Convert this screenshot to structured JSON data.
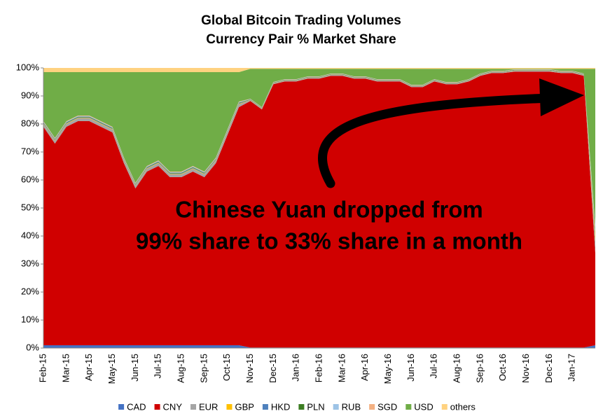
{
  "chart_data": {
    "type": "stacked_area",
    "title": "Global Bitcoin Trading Volumes",
    "subtitle": "Currency Pair % Market Share",
    "categories": [
      "Feb-15",
      null,
      "Mar-15",
      null,
      "Apr-15",
      null,
      "May-15",
      null,
      "Jun-15",
      null,
      "Jul-15",
      null,
      "Aug-15",
      null,
      "Sep-15",
      null,
      "Oct-15",
      null,
      "Nov-15",
      null,
      "Dec-15",
      null,
      "Jan-16",
      null,
      "Feb-16",
      null,
      "Mar-16",
      null,
      "Apr-16",
      null,
      "May-16",
      null,
      "Jun-16",
      null,
      "Jul-16",
      null,
      "Aug-16",
      null,
      "Sep-16",
      null,
      "Oct-16",
      null,
      "Nov-16",
      null,
      "Dec-16",
      null,
      "Jan-17",
      null,
      null
    ],
    "series": [
      {
        "name": "CAD",
        "color": "#4472c4",
        "values": [
          1,
          1,
          1,
          1,
          1,
          1,
          1,
          1,
          1,
          1,
          1,
          1,
          1,
          1,
          1,
          1,
          1,
          1,
          0.2,
          0.2,
          0.2,
          0.2,
          0.2,
          0.2,
          0.2,
          0.2,
          0.2,
          0.2,
          0.2,
          0.2,
          0.2,
          0.2,
          0.2,
          0.2,
          0.2,
          0.2,
          0.2,
          0.2,
          0.2,
          0.2,
          0.2,
          0.2,
          0.2,
          0.2,
          0.2,
          0.2,
          0.2,
          0.2,
          1
        ]
      },
      {
        "name": "CNY",
        "color": "#d00000",
        "values": [
          78,
          72,
          78,
          80,
          80,
          78,
          76,
          65,
          56,
          62,
          64,
          60,
          60,
          62,
          60,
          65,
          75,
          85,
          88,
          85,
          94,
          95,
          95,
          96,
          96,
          97,
          97,
          96,
          96,
          95,
          95,
          95,
          93,
          93,
          95,
          94,
          94,
          95,
          97,
          98,
          98,
          98.5,
          98.5,
          98.5,
          98.5,
          98,
          98,
          97,
          33
        ]
      },
      {
        "name": "EUR",
        "color": "#a5a5a5",
        "values": [
          1,
          1,
          1,
          1,
          1,
          1,
          1,
          1,
          1,
          1,
          1,
          1,
          1,
          1,
          1,
          1,
          1,
          1,
          0.3,
          0.3,
          0.3,
          0.3,
          0.3,
          0.3,
          0.3,
          0.3,
          0.3,
          0.3,
          0.3,
          0.3,
          0.3,
          0.3,
          0.3,
          0.3,
          0.3,
          0.3,
          0.3,
          0.3,
          0.3,
          0.3,
          0.3,
          0.3,
          0.3,
          0.3,
          0.3,
          0.3,
          0.3,
          0.3,
          4
        ]
      },
      {
        "name": "GBP",
        "color": "#ffc000",
        "values": [
          0.2,
          0.2,
          0.2,
          0.2,
          0.2,
          0.2,
          0.2,
          0.2,
          0.2,
          0.2,
          0.2,
          0.2,
          0.2,
          0.2,
          0.2,
          0.2,
          0.2,
          0.2,
          0.1,
          0.1,
          0.1,
          0.1,
          0.1,
          0.1,
          0.1,
          0.1,
          0.1,
          0.1,
          0.1,
          0.1,
          0.1,
          0.1,
          0.1,
          0.1,
          0.1,
          0.1,
          0.1,
          0.1,
          0.1,
          0.1,
          0.1,
          0.1,
          0.1,
          0.1,
          0.1,
          0.1,
          0.1,
          0.1,
          2
        ]
      },
      {
        "name": "HKD",
        "color": "#4f81bd",
        "values": [
          0.2,
          0.2,
          0.2,
          0.2,
          0.2,
          0.2,
          0.2,
          0.2,
          0.2,
          0.2,
          0.2,
          0.2,
          0.2,
          0.2,
          0.2,
          0.2,
          0.2,
          0.2,
          0.1,
          0.1,
          0.1,
          0.1,
          0.1,
          0.1,
          0.1,
          0.1,
          0.1,
          0.1,
          0.1,
          0.1,
          0.1,
          0.1,
          0.1,
          0.1,
          0.1,
          0.1,
          0.1,
          0.1,
          0.1,
          0.1,
          0.1,
          0.1,
          0.1,
          0.1,
          0.1,
          0.1,
          0.1,
          0.1,
          0.2
        ]
      },
      {
        "name": "PLN",
        "color": "#3c7d22",
        "values": [
          0.2,
          0.2,
          0.2,
          0.2,
          0.2,
          0.2,
          0.2,
          0.2,
          0.2,
          0.2,
          0.2,
          0.2,
          0.2,
          0.2,
          0.2,
          0.2,
          0.2,
          0.2,
          0.1,
          0.1,
          0.1,
          0.1,
          0.1,
          0.1,
          0.1,
          0.1,
          0.1,
          0.1,
          0.1,
          0.1,
          0.1,
          0.1,
          0.1,
          0.1,
          0.1,
          0.1,
          0.1,
          0.1,
          0.1,
          0.1,
          0.1,
          0.1,
          0.1,
          0.1,
          0.1,
          0.1,
          0.1,
          0.1,
          1
        ]
      },
      {
        "name": "RUB",
        "color": "#9dc3e6",
        "values": [
          0.2,
          0.2,
          0.2,
          0.2,
          0.2,
          0.2,
          0.2,
          0.2,
          0.2,
          0.2,
          0.2,
          0.2,
          0.2,
          0.2,
          0.2,
          0.2,
          0.2,
          0.2,
          0.1,
          0.1,
          0.1,
          0.1,
          0.1,
          0.1,
          0.1,
          0.1,
          0.1,
          0.1,
          0.1,
          0.1,
          0.1,
          0.1,
          0.1,
          0.1,
          0.1,
          0.1,
          0.1,
          0.1,
          0.1,
          0.1,
          0.1,
          0.1,
          0.1,
          0.1,
          0.1,
          0.1,
          0.1,
          0.1,
          2
        ]
      },
      {
        "name": "SGD",
        "color": "#f4b183",
        "values": [
          0.2,
          0.2,
          0.2,
          0.2,
          0.2,
          0.2,
          0.2,
          0.2,
          0.2,
          0.2,
          0.2,
          0.2,
          0.2,
          0.2,
          0.2,
          0.2,
          0.2,
          0.2,
          0.1,
          0.1,
          0.1,
          0.1,
          0.1,
          0.1,
          0.1,
          0.1,
          0.1,
          0.1,
          0.1,
          0.1,
          0.1,
          0.1,
          0.1,
          0.1,
          0.1,
          0.1,
          0.1,
          0.1,
          0.1,
          0.1,
          0.1,
          0.1,
          0.1,
          0.1,
          0.1,
          0.1,
          0.1,
          0.1,
          0.5
        ]
      },
      {
        "name": "USD",
        "color": "#70ad47",
        "values": [
          17.5,
          23.5,
          17.5,
          15.5,
          15.5,
          17.5,
          19.5,
          30.5,
          39.5,
          33.5,
          31.5,
          35.5,
          35.5,
          33.5,
          35.5,
          30.5,
          20.5,
          10.5,
          10.7,
          13.7,
          4.7,
          3.7,
          3.7,
          2.7,
          2.7,
          1.7,
          1.7,
          2.7,
          2.7,
          3.7,
          3.7,
          3.7,
          5.7,
          5.7,
          3.7,
          4.7,
          4.7,
          3.7,
          1.7,
          0.7,
          0.7,
          0.2,
          0.2,
          0.2,
          0.2,
          0.7,
          0.7,
          1.7,
          56
        ]
      },
      {
        "name": "others",
        "color": "#ffd280",
        "values": [
          1.5,
          1.5,
          1.5,
          1.5,
          1.5,
          1.5,
          1.5,
          1.5,
          1.5,
          1.5,
          1.5,
          1.5,
          1.5,
          1.5,
          1.5,
          1.5,
          1.5,
          1.5,
          0.3,
          0.3,
          0.3,
          0.3,
          0.3,
          0.3,
          0.3,
          0.3,
          0.3,
          0.3,
          0.3,
          0.3,
          0.3,
          0.3,
          0.3,
          0.3,
          0.3,
          0.3,
          0.3,
          0.3,
          0.3,
          0.3,
          0.3,
          0.3,
          0.3,
          0.3,
          0.3,
          0.3,
          0.3,
          0.3,
          0.3
        ]
      }
    ],
    "ylim": [
      0,
      100
    ],
    "yticks": [
      {
        "value": 0,
        "label": "0%"
      },
      {
        "value": 10,
        "label": "10%"
      },
      {
        "value": 20,
        "label": "20%"
      },
      {
        "value": 30,
        "label": "30%"
      },
      {
        "value": 40,
        "label": "40%"
      },
      {
        "value": 50,
        "label": "50%"
      },
      {
        "value": 60,
        "label": "60%"
      },
      {
        "value": 70,
        "label": "70%"
      },
      {
        "value": 80,
        "label": "80%"
      },
      {
        "value": 90,
        "label": "90%"
      },
      {
        "value": 100,
        "label": "100%"
      }
    ],
    "legend": "bottom",
    "annotations": [
      "Chinese Yuan dropped from",
      "99% share to 33% share in a month"
    ]
  }
}
